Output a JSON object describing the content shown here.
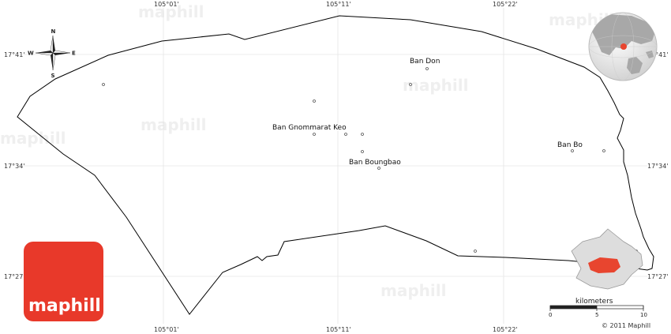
{
  "map": {
    "lon_ticks": [
      "105°01'",
      "105°11'",
      "105°22'"
    ],
    "lat_ticks": [
      "17°41'",
      "17°34'",
      "17°27'"
    ],
    "places": [
      "Ban Don",
      "Ban Gnommarat Keo",
      "Ban Boungbao",
      "Ban Bo"
    ],
    "watermark": "maphill"
  },
  "compass": {
    "n": "N",
    "s": "S",
    "e": "E",
    "w": "W"
  },
  "scale": {
    "title": "kilometers",
    "ticks": [
      "0",
      "5",
      "10"
    ]
  },
  "logo": {
    "text": "maphill",
    "color": "#e8392a"
  },
  "copyright": "© 2011 Maphill",
  "colors": {
    "region": "#e8452f",
    "border": "#000000",
    "globe_highlight": "#e8452f"
  }
}
